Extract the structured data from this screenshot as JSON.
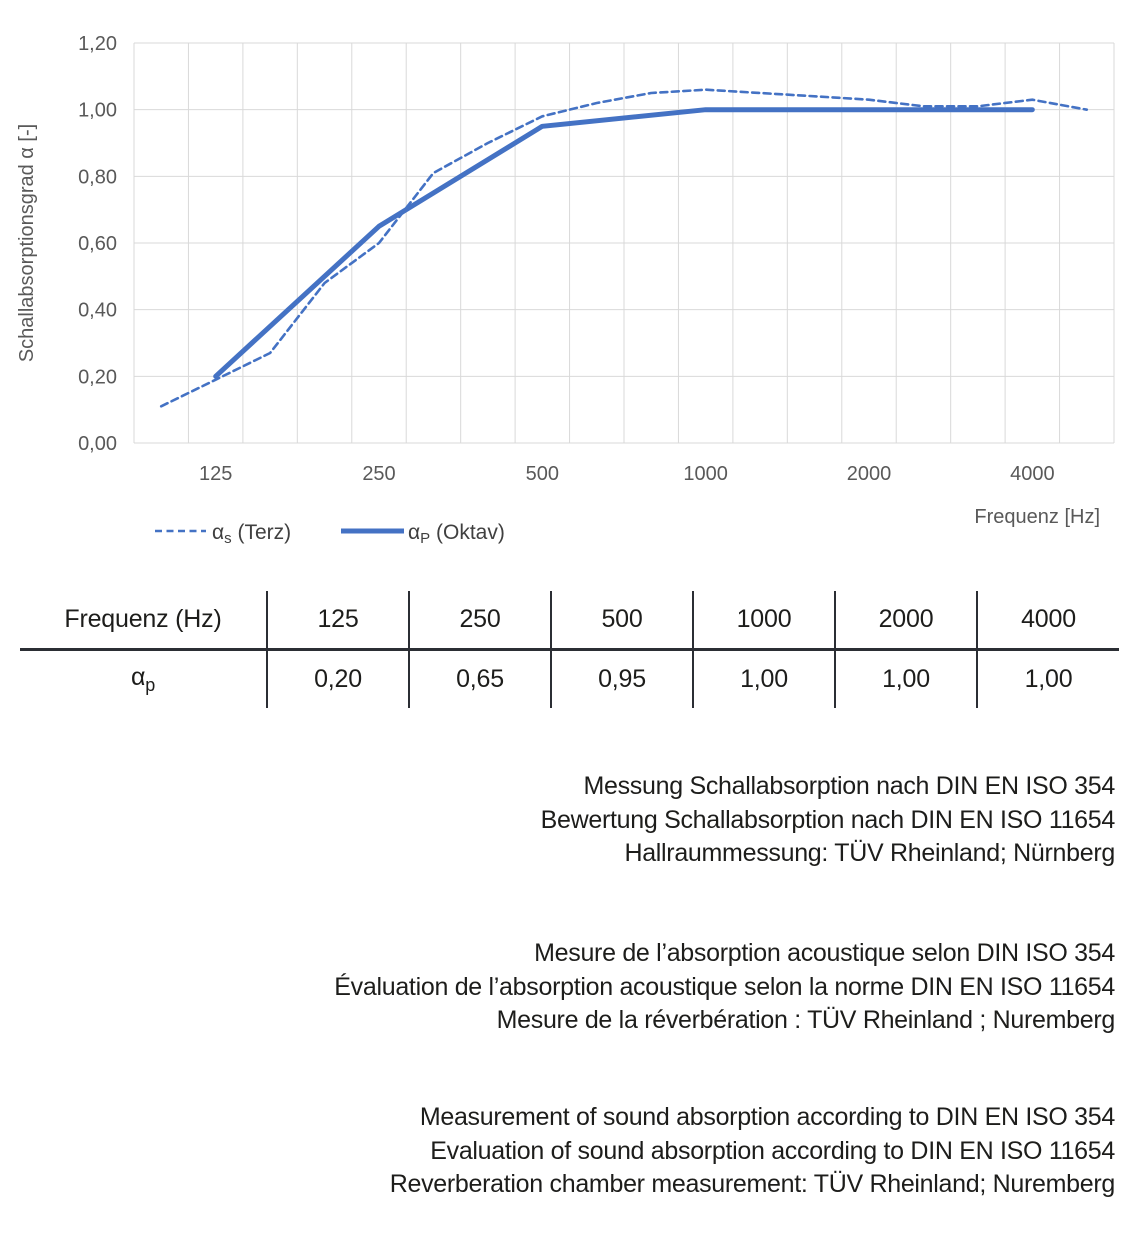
{
  "colors": {
    "line": "#4472c4",
    "grid": "#d9d9d9",
    "axis_text": "#595959",
    "legend_text": "#404040",
    "table_text": "#1d1d1b"
  },
  "chart_data": {
    "type": "line",
    "title": "",
    "xlabel": "Frequenz [Hz]",
    "ylabel": "Schallabsorptionsgrad α [-]",
    "ylim": [
      0,
      1.2
    ],
    "grid": true,
    "legend_position": "bottom-left",
    "x_categories": [
      "100",
      "125",
      "160",
      "200",
      "250",
      "315",
      "400",
      "500",
      "630",
      "800",
      "1000",
      "1250",
      "1600",
      "2000",
      "2500",
      "3150",
      "4000",
      "5000"
    ],
    "xtick_visible": [
      {
        "index": 1,
        "label": "125"
      },
      {
        "index": 4,
        "label": "250"
      },
      {
        "index": 7,
        "label": "500"
      },
      {
        "index": 10,
        "label": "1000"
      },
      {
        "index": 13,
        "label": "2000"
      },
      {
        "index": 16,
        "label": "4000"
      }
    ],
    "yticks": [
      {
        "value": 0.0,
        "label": "0,00"
      },
      {
        "value": 0.2,
        "label": "0,20"
      },
      {
        "value": 0.4,
        "label": "0,40"
      },
      {
        "value": 0.6,
        "label": "0,60"
      },
      {
        "value": 0.8,
        "label": "0,80"
      },
      {
        "value": 1.0,
        "label": "1,00"
      },
      {
        "value": 1.2,
        "label": "1,20"
      }
    ],
    "series": [
      {
        "name": "αs (Terz)",
        "name_parts": {
          "symbol": "α",
          "sub": "s",
          "suffix": " (Terz)"
        },
        "style": "dashed",
        "indices": [
          0,
          1,
          2,
          3,
          4,
          5,
          6,
          7,
          8,
          9,
          10,
          11,
          12,
          13,
          14,
          15,
          16,
          17
        ],
        "values": [
          0.11,
          0.19,
          0.27,
          0.48,
          0.6,
          0.81,
          0.9,
          0.98,
          1.02,
          1.05,
          1.06,
          1.05,
          1.04,
          1.03,
          1.01,
          1.01,
          1.03,
          1.0
        ]
      },
      {
        "name": "αP (Oktav)",
        "name_parts": {
          "symbol": "α",
          "sub": "P",
          "suffix": " (Oktav)"
        },
        "style": "solid",
        "indices": [
          1,
          4,
          7,
          10,
          13,
          16
        ],
        "values": [
          0.2,
          0.65,
          0.95,
          1.0,
          1.0,
          1.0
        ]
      }
    ]
  },
  "table": {
    "header": [
      "Frequenz (Hz)",
      "125",
      "250",
      "500",
      "1000",
      "2000",
      "4000"
    ],
    "row_label": {
      "symbol": "α",
      "sub": "p"
    },
    "values": [
      "0,20",
      "0,65",
      "0,95",
      "1,00",
      "1,00",
      "1,00"
    ]
  },
  "notes": {
    "german": [
      "Messung Schallabsorption nach DIN EN ISO 354",
      "Bewertung Schallabsorption nach DIN EN ISO 11654",
      "Hallraummessung: TÜV Rheinland; Nürnberg"
    ],
    "french": [
      "Mesure de l’absorption acoustique selon DIN ISO 354",
      "Évaluation de l’absorption acoustique selon la norme DIN EN ISO 11654",
      "Mesure de la réverbération : TÜV Rheinland ; Nuremberg"
    ],
    "english": [
      "Measurement of sound absorption according to DIN EN ISO 354",
      "Evaluation of sound absorption according to DIN EN ISO 11654",
      "Reverberation chamber measurement: TÜV Rheinland; Nuremberg"
    ]
  }
}
